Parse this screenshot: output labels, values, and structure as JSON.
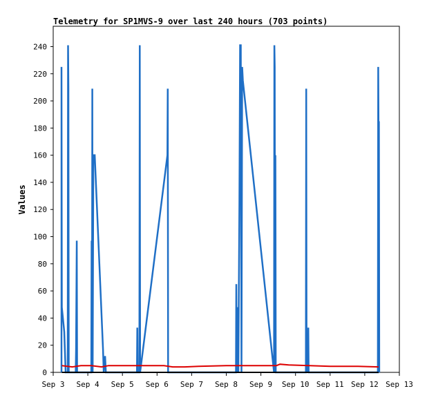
{
  "chart_data": {
    "type": "line",
    "title": "Telemetry for SP1MVS-9 over last 240 hours (703 points)",
    "xlabel": "",
    "ylabel": "Values",
    "x_ticks": [
      "Sep 3",
      "Sep 4",
      "Sep 5",
      "Sep 6",
      "Sep 7",
      "Sep 8",
      "Sep 9",
      "Sep 10",
      "Sep 11",
      "Sep 12",
      "Sep 13"
    ],
    "y_ticks": [
      0,
      20,
      40,
      60,
      80,
      100,
      120,
      140,
      160,
      180,
      200,
      220,
      240
    ],
    "xlim": [
      3.0,
      13.0
    ],
    "ylim": [
      0,
      255
    ],
    "grid": false,
    "series": [
      {
        "color": "#1f6fc6",
        "points": [
          [
            3.24,
            0
          ],
          [
            3.24,
            225
          ],
          [
            3.25,
            48
          ],
          [
            3.32,
            30
          ],
          [
            3.36,
            0
          ],
          [
            3.42,
            0
          ],
          [
            3.43,
            241
          ],
          [
            3.44,
            210
          ],
          [
            3.45,
            0
          ],
          [
            3.65,
            0
          ],
          [
            3.66,
            17
          ],
          [
            3.68,
            97
          ],
          [
            3.69,
            0
          ],
          [
            4.1,
            0
          ],
          [
            4.11,
            97
          ],
          [
            4.12,
            0
          ],
          [
            4.13,
            209
          ],
          [
            4.14,
            0
          ],
          [
            4.16,
            160
          ],
          [
            4.2,
            160
          ],
          [
            4.44,
            17
          ],
          [
            4.46,
            0
          ],
          [
            4.5,
            12
          ],
          [
            4.52,
            0
          ],
          [
            5.42,
            0
          ],
          [
            5.43,
            33
          ],
          [
            5.44,
            0
          ],
          [
            5.49,
            0
          ],
          [
            5.5,
            241
          ],
          [
            5.51,
            0
          ],
          [
            6.3,
            160
          ],
          [
            6.31,
            209
          ],
          [
            6.32,
            0
          ],
          [
            8.28,
            0
          ],
          [
            8.29,
            65
          ],
          [
            8.3,
            0
          ],
          [
            8.32,
            48
          ],
          [
            8.35,
            0
          ],
          [
            8.38,
            125
          ],
          [
            8.4,
            241
          ],
          [
            8.42,
            241
          ],
          [
            8.44,
            0
          ],
          [
            8.46,
            225
          ],
          [
            8.48,
            215
          ],
          [
            9.38,
            0
          ],
          [
            9.39,
            241
          ],
          [
            9.4,
            225
          ],
          [
            9.41,
            0
          ],
          [
            9.42,
            160
          ],
          [
            9.43,
            0
          ],
          [
            10.3,
            0
          ],
          [
            10.31,
            209
          ],
          [
            10.32,
            0
          ],
          [
            10.34,
            17
          ],
          [
            10.36,
            0
          ],
          [
            10.37,
            33
          ],
          [
            10.38,
            0
          ],
          [
            12.38,
            0
          ],
          [
            12.39,
            225
          ],
          [
            12.4,
            176
          ],
          [
            12.41,
            185
          ],
          [
            12.42,
            0
          ]
        ]
      },
      {
        "color": "#dd0000",
        "points": [
          [
            3.25,
            5
          ],
          [
            3.55,
            4
          ],
          [
            3.8,
            5
          ],
          [
            4.1,
            5
          ],
          [
            4.4,
            4
          ],
          [
            4.6,
            5
          ],
          [
            5.2,
            5
          ],
          [
            5.55,
            5
          ],
          [
            6.2,
            5
          ],
          [
            6.45,
            4
          ],
          [
            6.8,
            4
          ],
          [
            7.2,
            4.5
          ],
          [
            8.0,
            5
          ],
          [
            8.3,
            5
          ],
          [
            9.0,
            5
          ],
          [
            9.45,
            5
          ],
          [
            9.55,
            6
          ],
          [
            9.8,
            5.5
          ],
          [
            10.4,
            5
          ],
          [
            11.0,
            4.5
          ],
          [
            11.8,
            4.5
          ],
          [
            12.4,
            4
          ]
        ]
      },
      {
        "color": "#000000",
        "points": [
          [
            3.25,
            0
          ],
          [
            12.4,
            0
          ]
        ]
      }
    ]
  }
}
